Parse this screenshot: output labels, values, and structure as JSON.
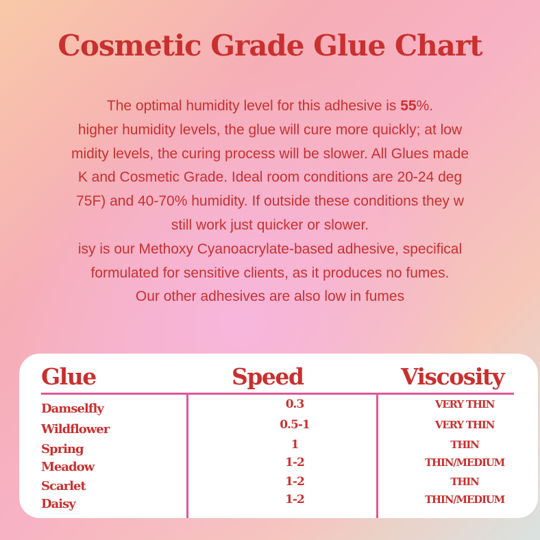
{
  "title": "Cosmetic Grade Glue Chart",
  "paragraph": {
    "line1_pre": "The optimal humidity level for this adhesive is ",
    "line1_bold": "55",
    "line1_post": "%.",
    "lines": [
      "higher humidity levels, the glue will cure more quickly; at low",
      "midity levels, the curing process will be slower. All Glues made",
      "K and Cosmetic Grade.  Ideal room conditions are 20-24 deg",
      "75F) and 40-70% humidity.  If outside these conditions they w",
      "still work just quicker or slower.",
      "isy is our Methoxy Cyanoacrylate-based adhesive, specifical",
      "formulated for sensitive clients, as it produces no fumes.",
      "Our other adhesives are also low in fumes"
    ]
  },
  "table": {
    "headers": [
      "Glue",
      "Speed",
      "Viscosity"
    ],
    "rows": [
      {
        "glue": "Damselfly",
        "speed": "0.3",
        "viscosity": "VERY THIN"
      },
      {
        "glue": "Wildflower",
        "speed": "0.5-1",
        "viscosity": "VERY THIN"
      },
      {
        "glue": "Spring",
        "speed": "1",
        "viscosity": "THIN"
      },
      {
        "glue": "Meadow",
        "speed": "1-2",
        "viscosity": "THIN/MEDIUM"
      },
      {
        "glue": "Scarlet",
        "speed": "1-2",
        "viscosity": "THIN"
      },
      {
        "glue": "Daisy",
        "speed": "1-2",
        "viscosity": "THIN/MEDIUM"
      }
    ]
  },
  "colors": {
    "text": "#c9302f",
    "rule": "#e0559a"
  }
}
